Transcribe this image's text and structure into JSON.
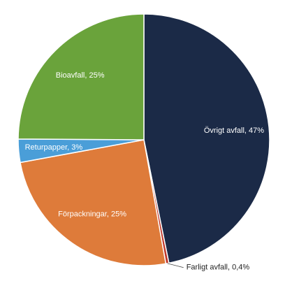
{
  "chart_data": {
    "type": "pie",
    "categories": [
      "Övrigt avfall",
      "Farligt avfall",
      "Förpackningar",
      "Returpapper",
      "Bioavfall"
    ],
    "values": [
      47,
      0.4,
      25,
      3,
      25
    ],
    "value_labels": [
      "Övrigt avfall, 47%",
      "Farligt avfall, 0,4%",
      "Förpackningar, 25%",
      "Returpapper, 3%",
      "Bioavfall, 25%"
    ],
    "colors": [
      "#1b2a47",
      "#c0392b",
      "#de7b3a",
      "#4a9ed8",
      "#6aa33b"
    ]
  }
}
